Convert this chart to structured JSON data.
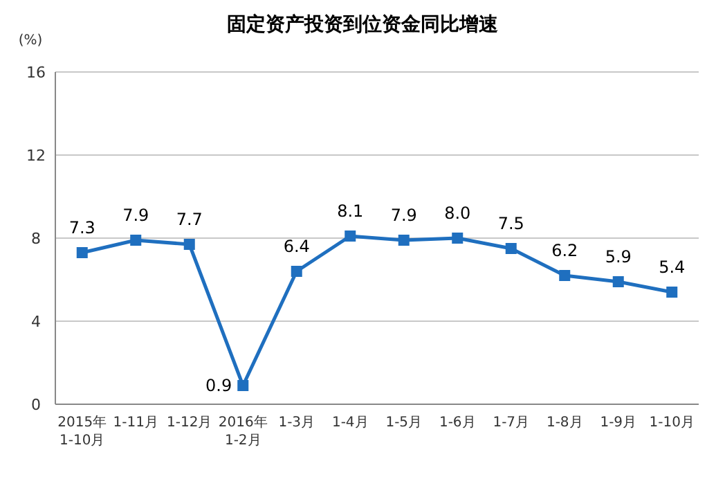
{
  "chart_data": {
    "type": "line",
    "title": "固定资产投资到位资金同比增速",
    "ylabel": "(%)",
    "categories": [
      "2015年\n1-10月",
      "1-11月",
      "1-12月",
      "2016年\n1-2月",
      "1-3月",
      "1-4月",
      "1-5月",
      "1-6月",
      "1-7月",
      "1-8月",
      "1-9月",
      "1-10月"
    ],
    "series": [
      {
        "color": "#1f6fbf",
        "values": [
          7.3,
          7.9,
          7.7,
          0.9,
          6.4,
          8.1,
          7.9,
          8.0,
          7.5,
          6.2,
          5.9,
          5.4
        ]
      }
    ],
    "value_labels": [
      "7.3",
      "7.9",
      "7.7",
      "0.9",
      "6.4",
      "8.1",
      "7.9",
      "8.0",
      "7.5",
      "6.2",
      "5.9",
      "5.4"
    ],
    "ylim": [
      0,
      16
    ],
    "yticks": [
      0,
      4,
      8,
      12,
      16
    ],
    "grid": "y",
    "marker": "square",
    "line_style": "solid"
  }
}
